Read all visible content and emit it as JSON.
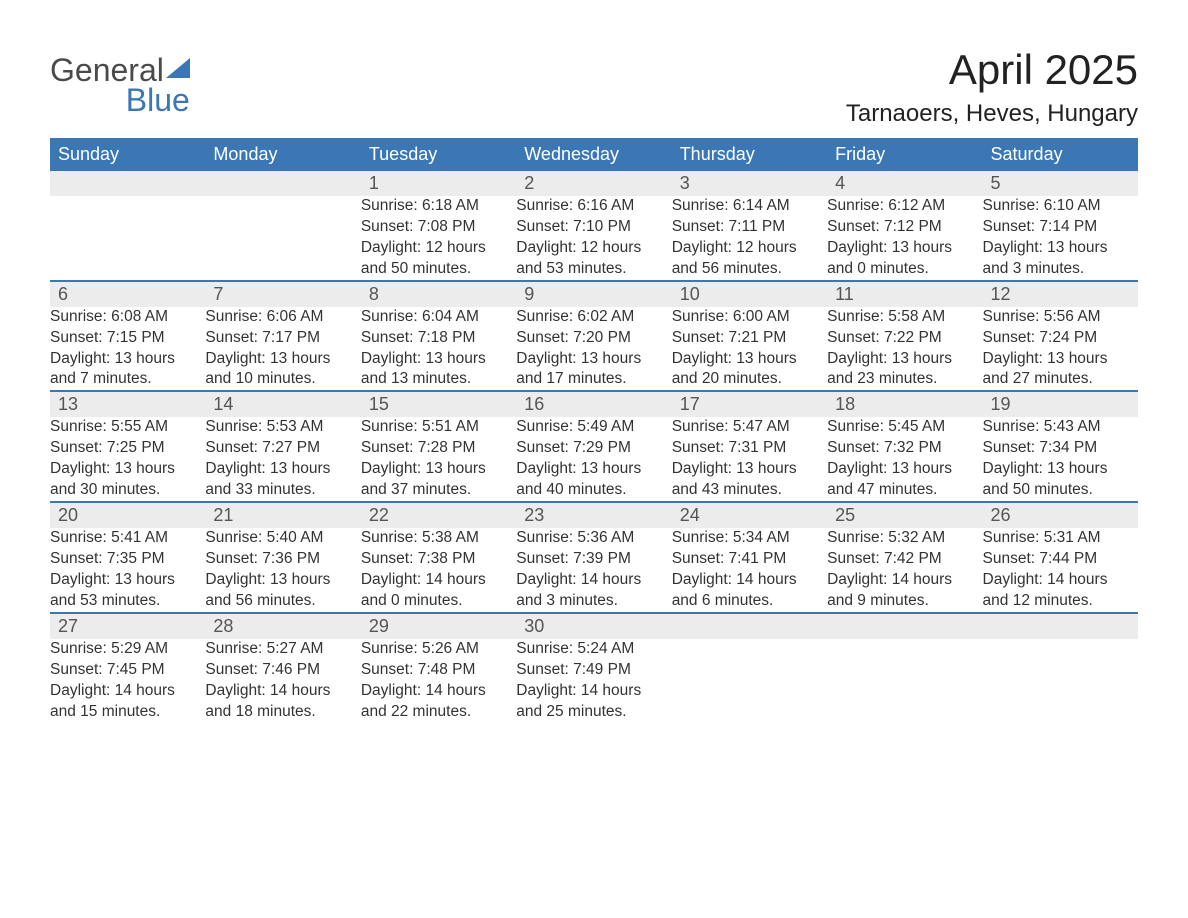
{
  "brand": {
    "word1": "General",
    "word2": "Blue"
  },
  "title": "April 2025",
  "location": "Tarnaoers, Heves, Hungary",
  "colors": {
    "header_bg": "#3b77b5",
    "header_text": "#ffffff",
    "daynum_bg": "#ececec",
    "rule": "#3b77b5",
    "body_text": "#333333",
    "page_bg": "#ffffff"
  },
  "weekday_labels": [
    "Sunday",
    "Monday",
    "Tuesday",
    "Wednesday",
    "Thursday",
    "Friday",
    "Saturday"
  ],
  "labels": {
    "sunrise": "Sunrise:",
    "sunset": "Sunset:",
    "daylight": "Daylight:"
  },
  "weeks": [
    [
      null,
      null,
      {
        "n": "1",
        "sunrise": "6:18 AM",
        "sunset": "7:08 PM",
        "daylight": "12 hours and 50 minutes."
      },
      {
        "n": "2",
        "sunrise": "6:16 AM",
        "sunset": "7:10 PM",
        "daylight": "12 hours and 53 minutes."
      },
      {
        "n": "3",
        "sunrise": "6:14 AM",
        "sunset": "7:11 PM",
        "daylight": "12 hours and 56 minutes."
      },
      {
        "n": "4",
        "sunrise": "6:12 AM",
        "sunset": "7:12 PM",
        "daylight": "13 hours and 0 minutes."
      },
      {
        "n": "5",
        "sunrise": "6:10 AM",
        "sunset": "7:14 PM",
        "daylight": "13 hours and 3 minutes."
      }
    ],
    [
      {
        "n": "6",
        "sunrise": "6:08 AM",
        "sunset": "7:15 PM",
        "daylight": "13 hours and 7 minutes."
      },
      {
        "n": "7",
        "sunrise": "6:06 AM",
        "sunset": "7:17 PM",
        "daylight": "13 hours and 10 minutes."
      },
      {
        "n": "8",
        "sunrise": "6:04 AM",
        "sunset": "7:18 PM",
        "daylight": "13 hours and 13 minutes."
      },
      {
        "n": "9",
        "sunrise": "6:02 AM",
        "sunset": "7:20 PM",
        "daylight": "13 hours and 17 minutes."
      },
      {
        "n": "10",
        "sunrise": "6:00 AM",
        "sunset": "7:21 PM",
        "daylight": "13 hours and 20 minutes."
      },
      {
        "n": "11",
        "sunrise": "5:58 AM",
        "sunset": "7:22 PM",
        "daylight": "13 hours and 23 minutes."
      },
      {
        "n": "12",
        "sunrise": "5:56 AM",
        "sunset": "7:24 PM",
        "daylight": "13 hours and 27 minutes."
      }
    ],
    [
      {
        "n": "13",
        "sunrise": "5:55 AM",
        "sunset": "7:25 PM",
        "daylight": "13 hours and 30 minutes."
      },
      {
        "n": "14",
        "sunrise": "5:53 AM",
        "sunset": "7:27 PM",
        "daylight": "13 hours and 33 minutes."
      },
      {
        "n": "15",
        "sunrise": "5:51 AM",
        "sunset": "7:28 PM",
        "daylight": "13 hours and 37 minutes."
      },
      {
        "n": "16",
        "sunrise": "5:49 AM",
        "sunset": "7:29 PM",
        "daylight": "13 hours and 40 minutes."
      },
      {
        "n": "17",
        "sunrise": "5:47 AM",
        "sunset": "7:31 PM",
        "daylight": "13 hours and 43 minutes."
      },
      {
        "n": "18",
        "sunrise": "5:45 AM",
        "sunset": "7:32 PM",
        "daylight": "13 hours and 47 minutes."
      },
      {
        "n": "19",
        "sunrise": "5:43 AM",
        "sunset": "7:34 PM",
        "daylight": "13 hours and 50 minutes."
      }
    ],
    [
      {
        "n": "20",
        "sunrise": "5:41 AM",
        "sunset": "7:35 PM",
        "daylight": "13 hours and 53 minutes."
      },
      {
        "n": "21",
        "sunrise": "5:40 AM",
        "sunset": "7:36 PM",
        "daylight": "13 hours and 56 minutes."
      },
      {
        "n": "22",
        "sunrise": "5:38 AM",
        "sunset": "7:38 PM",
        "daylight": "14 hours and 0 minutes."
      },
      {
        "n": "23",
        "sunrise": "5:36 AM",
        "sunset": "7:39 PM",
        "daylight": "14 hours and 3 minutes."
      },
      {
        "n": "24",
        "sunrise": "5:34 AM",
        "sunset": "7:41 PM",
        "daylight": "14 hours and 6 minutes."
      },
      {
        "n": "25",
        "sunrise": "5:32 AM",
        "sunset": "7:42 PM",
        "daylight": "14 hours and 9 minutes."
      },
      {
        "n": "26",
        "sunrise": "5:31 AM",
        "sunset": "7:44 PM",
        "daylight": "14 hours and 12 minutes."
      }
    ],
    [
      {
        "n": "27",
        "sunrise": "5:29 AM",
        "sunset": "7:45 PM",
        "daylight": "14 hours and 15 minutes."
      },
      {
        "n": "28",
        "sunrise": "5:27 AM",
        "sunset": "7:46 PM",
        "daylight": "14 hours and 18 minutes."
      },
      {
        "n": "29",
        "sunrise": "5:26 AM",
        "sunset": "7:48 PM",
        "daylight": "14 hours and 22 minutes."
      },
      {
        "n": "30",
        "sunrise": "5:24 AM",
        "sunset": "7:49 PM",
        "daylight": "14 hours and 25 minutes."
      },
      null,
      null,
      null
    ]
  ]
}
